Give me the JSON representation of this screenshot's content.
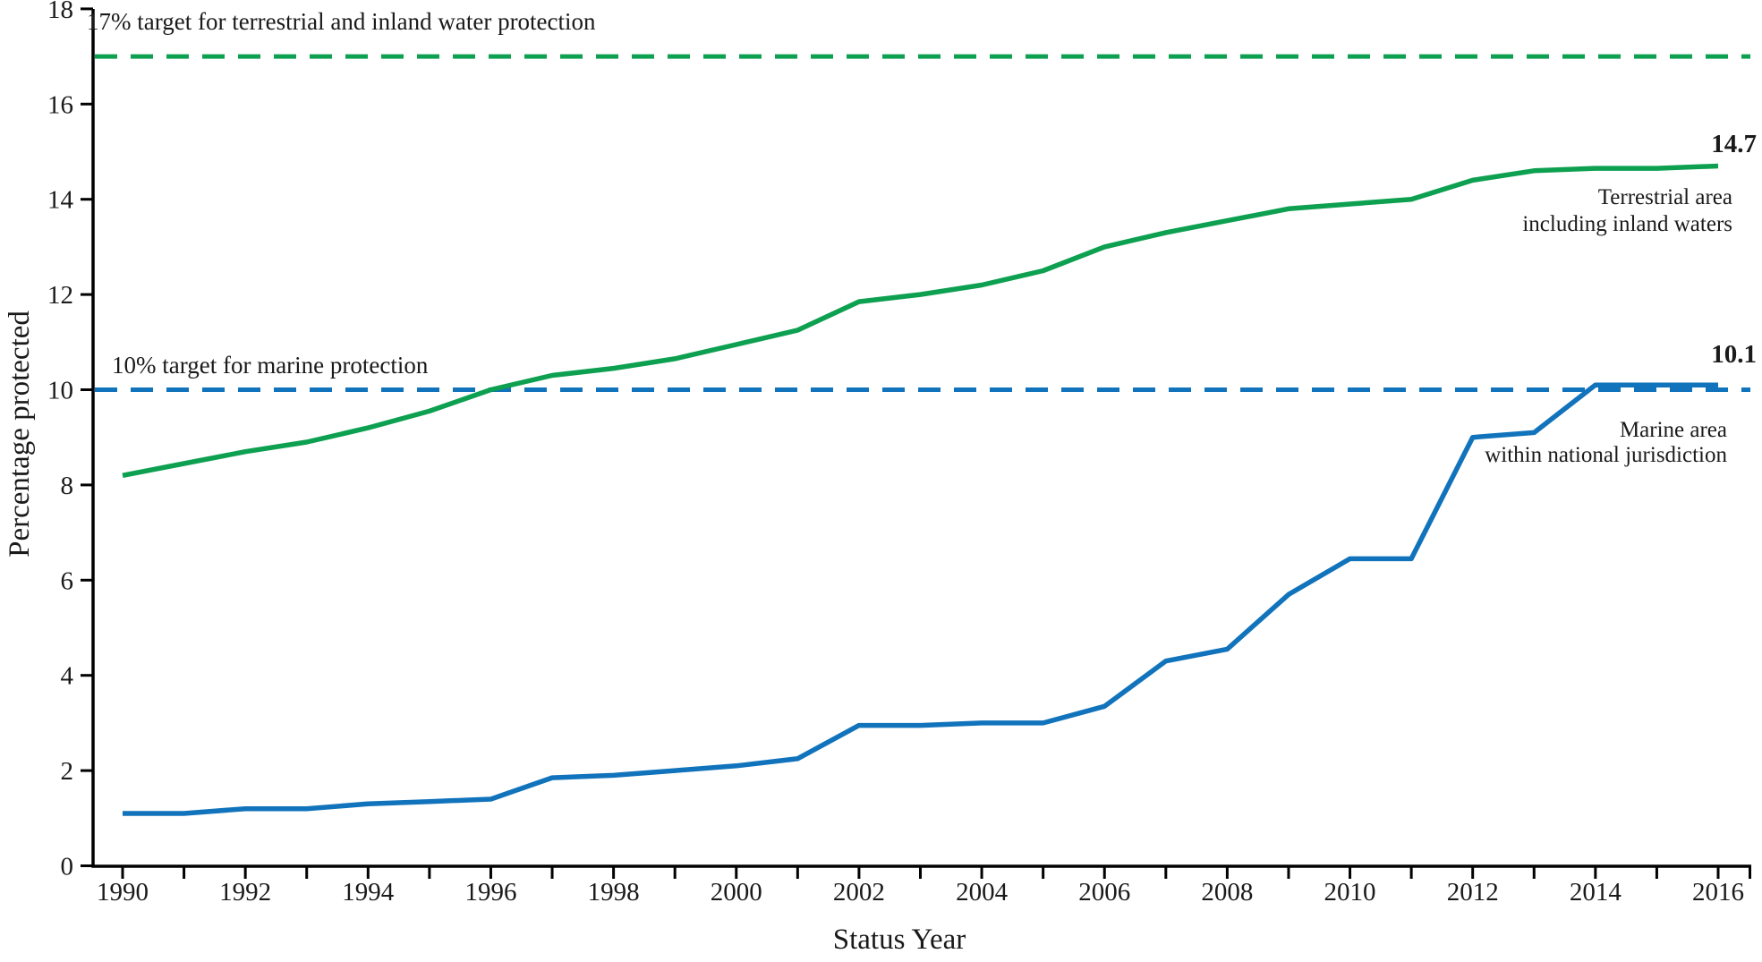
{
  "chart_data": {
    "type": "line",
    "xlabel": "Status Year",
    "ylabel": "Percentage protected",
    "x": [
      1990,
      1991,
      1992,
      1993,
      1994,
      1995,
      1996,
      1997,
      1998,
      1999,
      2000,
      2001,
      2002,
      2003,
      2004,
      2005,
      2006,
      2007,
      2008,
      2009,
      2010,
      2011,
      2012,
      2013,
      2014,
      2015,
      2016
    ],
    "x_range": [
      1990,
      2016
    ],
    "y_range": [
      0,
      18
    ],
    "x_tick_labels": [
      "1990",
      "1992",
      "1994",
      "1996",
      "1998",
      "2000",
      "2002",
      "2004",
      "2006",
      "2008",
      "2010",
      "2012",
      "2014",
      "2016"
    ],
    "x_labeled_years": [
      1990,
      1992,
      1994,
      1996,
      1998,
      2000,
      2002,
      2004,
      2006,
      2008,
      2010,
      2012,
      2014,
      2016
    ],
    "y_tick_labels": [
      "0",
      "2",
      "4",
      "6",
      "8",
      "10",
      "12",
      "14",
      "16",
      "18"
    ],
    "y_tick_values": [
      0,
      2,
      4,
      6,
      8,
      10,
      12,
      14,
      16,
      18
    ],
    "grid": "off",
    "legend_position": "end-of-line annotations",
    "series": [
      {
        "name": "Terrestrial area including inland waters",
        "color": "#0DA050",
        "values": [
          8.2,
          8.45,
          8.7,
          8.9,
          9.2,
          9.55,
          10.0,
          10.3,
          10.45,
          10.65,
          10.95,
          11.25,
          11.85,
          12.0,
          12.2,
          12.5,
          13.0,
          13.3,
          13.55,
          13.8,
          13.9,
          14.0,
          14.4,
          14.6,
          14.65,
          14.65,
          14.7
        ],
        "end_label": "14.7",
        "annotation_line1": "Terrestrial area",
        "annotation_line2": "including inland waters"
      },
      {
        "name": "Marine area within national jurisdiction",
        "color": "#1173BB",
        "values": [
          1.1,
          1.1,
          1.2,
          1.2,
          1.3,
          1.35,
          1.4,
          1.85,
          1.9,
          2.0,
          2.1,
          2.25,
          2.95,
          2.95,
          3.0,
          3.0,
          3.35,
          4.3,
          4.55,
          5.7,
          6.45,
          6.45,
          9.0,
          9.1,
          10.1,
          10.1,
          10.1
        ],
        "end_label": "10.1",
        "annotation_line1": "Marine area",
        "annotation_line2": "within national jurisdiction"
      }
    ],
    "targets": [
      {
        "value": 17,
        "color": "#0DA050",
        "label": "17% target for terrestrial and inland water protection"
      },
      {
        "value": 10,
        "color": "#1173BB",
        "label": "10% target for marine protection"
      }
    ],
    "axis_color": "#000000"
  }
}
